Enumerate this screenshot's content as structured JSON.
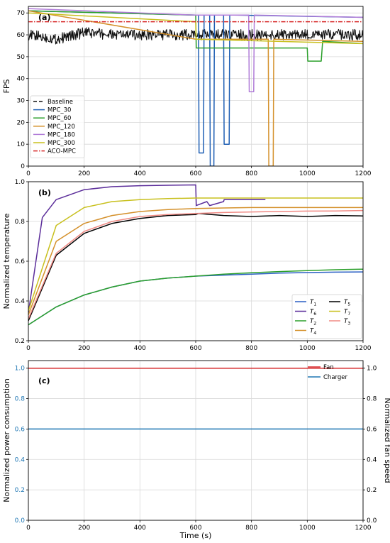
{
  "chart_data": [
    {
      "type": "line",
      "panel_label": "(a)",
      "ylabel": "FPS",
      "xlim": [
        0,
        1200
      ],
      "ylim": [
        0,
        73
      ],
      "yticks": [
        0,
        10,
        20,
        30,
        40,
        50,
        60,
        70
      ],
      "xticks": [
        0,
        200,
        400,
        600,
        800,
        1000,
        1200
      ],
      "grid": true,
      "legend_position": "lower-left",
      "series": [
        {
          "name": "Baseline",
          "color": "#111111",
          "style": "dashed",
          "x": [
            0,
            100,
            200,
            300,
            400,
            500,
            600,
            700,
            800,
            900,
            1000,
            1100,
            1200
          ],
          "y": [
            60,
            58,
            61,
            60,
            60,
            60,
            60,
            60,
            60,
            60,
            60,
            60,
            60
          ],
          "noise": 2.5
        },
        {
          "name": "MPC_30",
          "color": "#1f5fb4",
          "style": "solid",
          "x": [
            0,
            600,
            610,
            612,
            628,
            630,
            650,
            652,
            665,
            667,
            700,
            702,
            720,
            722,
            738,
            740,
            1200
          ],
          "y": [
            71,
            69,
            69,
            6,
            6,
            69,
            69,
            0,
            0,
            69,
            69,
            10,
            10,
            69,
            69,
            69,
            68
          ]
        },
        {
          "name": "MPC_60",
          "color": "#2ca02c",
          "style": "solid",
          "x": [
            0,
            600,
            602,
            1000,
            1002,
            1050,
            1055,
            1200
          ],
          "y": [
            71,
            69,
            54,
            54,
            48,
            48,
            57,
            56
          ]
        },
        {
          "name": "MPC_120",
          "color": "#d4902a",
          "style": "solid",
          "x": [
            0,
            600,
            601,
            860,
            862,
            878,
            880,
            1200
          ],
          "y": [
            71,
            58,
            58,
            58,
            0,
            0,
            58,
            57
          ]
        },
        {
          "name": "MPC_180",
          "color": "#b07cd8",
          "style": "solid",
          "x": [
            0,
            600,
            790,
            792,
            808,
            810,
            1200
          ],
          "y": [
            72,
            69,
            69,
            34,
            34,
            69,
            68
          ]
        },
        {
          "name": "MPC_300",
          "color": "#c8c01e",
          "style": "solid",
          "x": [
            0,
            600,
            601,
            1200
          ],
          "y": [
            70,
            66,
            58,
            56
          ]
        },
        {
          "name": "ACO-MPC",
          "color": "#d62728",
          "style": "dashdot",
          "x": [
            0,
            1200
          ],
          "y": [
            66,
            66
          ]
        }
      ]
    },
    {
      "type": "line",
      "panel_label": "(b)",
      "ylabel": "Normalized temperature",
      "xlim": [
        0,
        1200
      ],
      "ylim": [
        0.2,
        1.0
      ],
      "yticks": [
        0.2,
        0.4,
        0.6,
        0.8,
        1.0
      ],
      "xticks": [
        0,
        200,
        400,
        600,
        800,
        1000,
        1200
      ],
      "grid": true,
      "legend_position": "lower-right",
      "legend_order": [
        0,
        4,
        1,
        5,
        2,
        6,
        3
      ],
      "series": [
        {
          "name": "T1",
          "label_main": "T",
          "label_sub": "1",
          "color": "#2a5fc4",
          "x": [
            0,
            100,
            200,
            300,
            400,
            500,
            600,
            700,
            800,
            900,
            1000,
            1100,
            1200
          ],
          "y": [
            0.28,
            0.37,
            0.43,
            0.47,
            0.5,
            0.515,
            0.525,
            0.53,
            0.535,
            0.54,
            0.543,
            0.545,
            0.546
          ]
        },
        {
          "name": "T2",
          "label_main": "T",
          "label_sub": "2",
          "color": "#2ca02c",
          "x": [
            0,
            100,
            200,
            300,
            400,
            500,
            600,
            700,
            800,
            900,
            1000,
            1100,
            1200
          ],
          "y": [
            0.28,
            0.37,
            0.43,
            0.47,
            0.5,
            0.515,
            0.525,
            0.535,
            0.542,
            0.548,
            0.553,
            0.557,
            0.56
          ]
        },
        {
          "name": "T5",
          "label_main": "T",
          "label_sub": "5",
          "color": "#000000",
          "x": [
            0,
            100,
            200,
            300,
            400,
            500,
            600,
            610,
            700,
            800,
            900,
            1000,
            1100,
            1200
          ],
          "y": [
            0.3,
            0.63,
            0.74,
            0.79,
            0.815,
            0.83,
            0.835,
            0.84,
            0.83,
            0.825,
            0.83,
            0.825,
            0.83,
            0.828
          ]
        },
        {
          "name": "T3",
          "label_main": "T",
          "label_sub": "3",
          "color": "#f08a84",
          "x": [
            0,
            100,
            200,
            300,
            400,
            500,
            600,
            700,
            800,
            900,
            1000,
            1100,
            1200
          ],
          "y": [
            0.31,
            0.64,
            0.75,
            0.8,
            0.825,
            0.835,
            0.84,
            0.845,
            0.848,
            0.85,
            0.852,
            0.853,
            0.855
          ]
        },
        {
          "name": "T6",
          "label_main": "T",
          "label_sub": "6",
          "color": "#5b2d9a",
          "x": [
            0,
            50,
            100,
            200,
            300,
            400,
            500,
            600,
            602,
            640,
            650,
            700,
            702,
            850
          ],
          "y": [
            0.34,
            0.82,
            0.91,
            0.96,
            0.975,
            0.98,
            0.982,
            0.984,
            0.88,
            0.9,
            0.88,
            0.9,
            0.91,
            0.91
          ]
        },
        {
          "name": "T4",
          "label_main": "T",
          "label_sub": "4",
          "color": "#d4902a",
          "x": [
            0,
            100,
            200,
            300,
            400,
            500,
            600,
            700,
            800,
            900,
            1000,
            1100,
            1200
          ],
          "y": [
            0.33,
            0.7,
            0.79,
            0.83,
            0.85,
            0.86,
            0.865,
            0.868,
            0.87,
            0.87,
            0.87,
            0.87,
            0.87
          ]
        },
        {
          "name": "T7",
          "label_main": "T",
          "label_sub": "7",
          "color": "#c8c01e",
          "x": [
            0,
            100,
            200,
            300,
            400,
            500,
            600,
            700,
            800,
            900,
            1000,
            1100,
            1200
          ],
          "y": [
            0.35,
            0.78,
            0.87,
            0.9,
            0.91,
            0.915,
            0.918,
            0.918,
            0.918,
            0.918,
            0.918,
            0.918,
            0.918
          ]
        }
      ]
    },
    {
      "type": "line",
      "panel_label": "(c)",
      "ylabel": "Normalized power consumption",
      "ylabel_right": "Normalized fan speed",
      "xlabel": "Time (s)",
      "xlim": [
        0,
        1200
      ],
      "ylim": [
        0.0,
        1.05
      ],
      "yticks": [
        0.0,
        0.2,
        0.4,
        0.6,
        0.8,
        1.0
      ],
      "xticks": [
        0,
        200,
        400,
        600,
        800,
        1000,
        1200
      ],
      "left_tick_color": "#1f77b4",
      "grid": true,
      "legend_position": "upper-right",
      "series": [
        {
          "name": "Fan",
          "color": "#d62728",
          "x": [
            0,
            1200
          ],
          "y": [
            1.0,
            1.0
          ]
        },
        {
          "name": "Charger",
          "color": "#1f77b4",
          "x": [
            0,
            1200
          ],
          "y": [
            0.6,
            0.6
          ]
        }
      ]
    }
  ]
}
